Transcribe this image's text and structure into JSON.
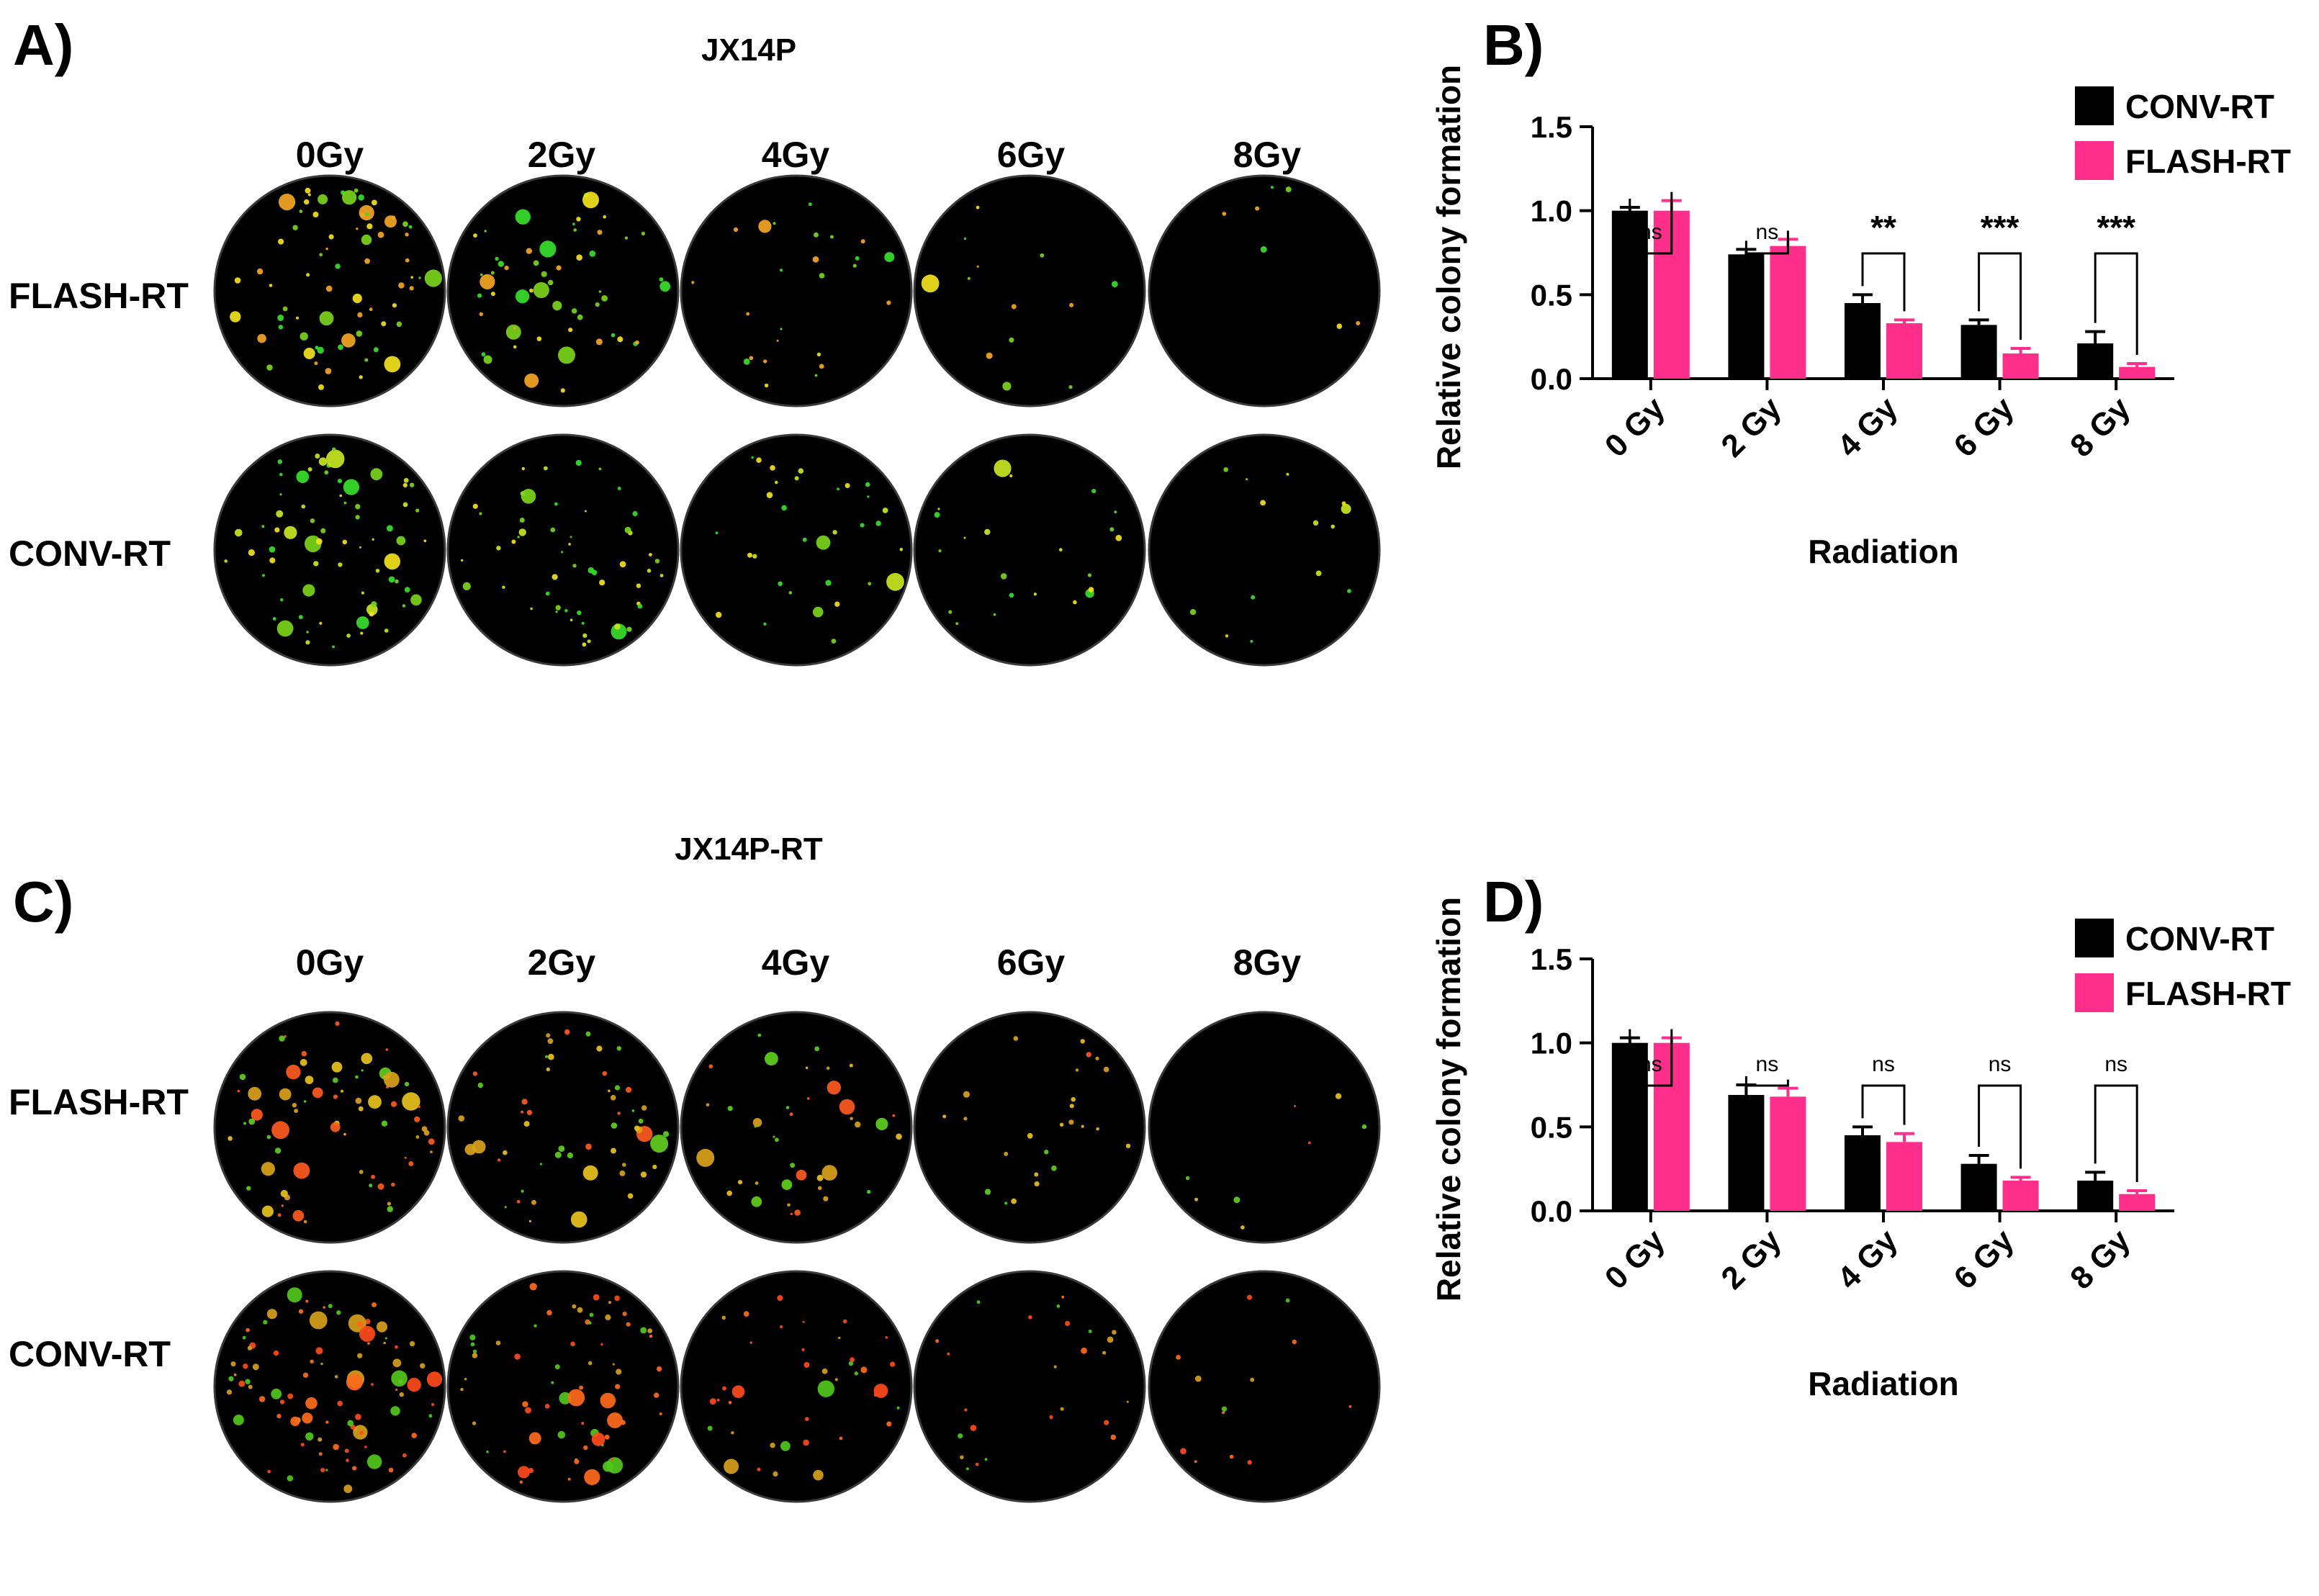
{
  "panels": {
    "a": {
      "letter": "A)",
      "title": "JX14P",
      "dose_labels": [
        "0Gy",
        "2Gy",
        "4Gy",
        "6Gy",
        "8Gy"
      ],
      "row_labels": [
        "FLASH-RT",
        "CONV-RT"
      ],
      "colony_density": [
        [
          1.0,
          0.8,
          0.35,
          0.18,
          0.1
        ],
        [
          1.0,
          0.75,
          0.45,
          0.32,
          0.2
        ]
      ],
      "colony_palette": [
        [
          "#f2e31b",
          "#7bd41a",
          "#36e02a",
          "#f5a623"
        ],
        [
          "#f2e31b",
          "#7bd41a",
          "#36e02a",
          "#c8e61e"
        ]
      ]
    },
    "b": {
      "letter": "B)"
    },
    "c": {
      "letter": "C)",
      "title": "JX14P-RT",
      "dose_labels": [
        "0Gy",
        "2Gy",
        "4Gy",
        "6Gy",
        "8Gy"
      ],
      "row_labels": [
        "FLASH-RT",
        "CONV-RT"
      ],
      "colony_density": [
        [
          1.0,
          0.75,
          0.55,
          0.35,
          0.12
        ],
        [
          1.3,
          0.95,
          0.55,
          0.35,
          0.18
        ]
      ],
      "colony_palette": [
        [
          "#ff5a1f",
          "#d9a21b",
          "#5fcf1c",
          "#e8c21a"
        ],
        [
          "#ff4a1a",
          "#ff6a1a",
          "#d6a01a",
          "#4fc81a"
        ]
      ]
    },
    "d": {
      "letter": "D)"
    }
  },
  "colors": {
    "conv": "#000000",
    "flash": "#ff2e8a",
    "dish": "#000000",
    "dish_rim": "#3a3a3a"
  },
  "chart_data": [
    {
      "id": "B",
      "type": "bar",
      "title": "",
      "xlabel": "Radiation",
      "ylabel": "Relative colony formation",
      "ylim": [
        0,
        1.5
      ],
      "yticks": [
        "0.0",
        "0.5",
        "1.0",
        "1.5"
      ],
      "categories": [
        "0 Gy",
        "2 Gy",
        "4 Gy",
        "6 Gy",
        "8 Gy"
      ],
      "legend": "top-right",
      "series": [
        {
          "name": "CONV-RT",
          "color": "#000000",
          "values": [
            1.0,
            0.74,
            0.45,
            0.32,
            0.21
          ],
          "errors": [
            0.02,
            0.03,
            0.05,
            0.03,
            0.07
          ]
        },
        {
          "name": "FLASH-RT",
          "color": "#ff2e8a",
          "values": [
            1.0,
            0.79,
            0.33,
            0.15,
            0.07
          ],
          "errors": [
            0.06,
            0.04,
            0.02,
            0.03,
            0.02
          ]
        }
      ],
      "significance": [
        "ns",
        "ns",
        "**",
        "***",
        "***"
      ]
    },
    {
      "id": "D",
      "type": "bar",
      "title": "",
      "xlabel": "Radiation",
      "ylabel": "Relative colony formation",
      "ylim": [
        0,
        1.5
      ],
      "yticks": [
        "0.0",
        "0.5",
        "1.0",
        "1.5"
      ],
      "categories": [
        "0 Gy",
        "2 Gy",
        "4 Gy",
        "6 Gy",
        "8 Gy"
      ],
      "legend": "top-right",
      "series": [
        {
          "name": "CONV-RT",
          "color": "#000000",
          "values": [
            1.0,
            0.69,
            0.45,
            0.28,
            0.18
          ],
          "errors": [
            0.03,
            0.06,
            0.05,
            0.05,
            0.05
          ]
        },
        {
          "name": "FLASH-RT",
          "color": "#ff2e8a",
          "values": [
            1.0,
            0.68,
            0.41,
            0.18,
            0.1
          ],
          "errors": [
            0.03,
            0.05,
            0.05,
            0.02,
            0.02
          ]
        }
      ],
      "significance": [
        "ns",
        "ns",
        "ns",
        "ns",
        "ns"
      ]
    }
  ]
}
